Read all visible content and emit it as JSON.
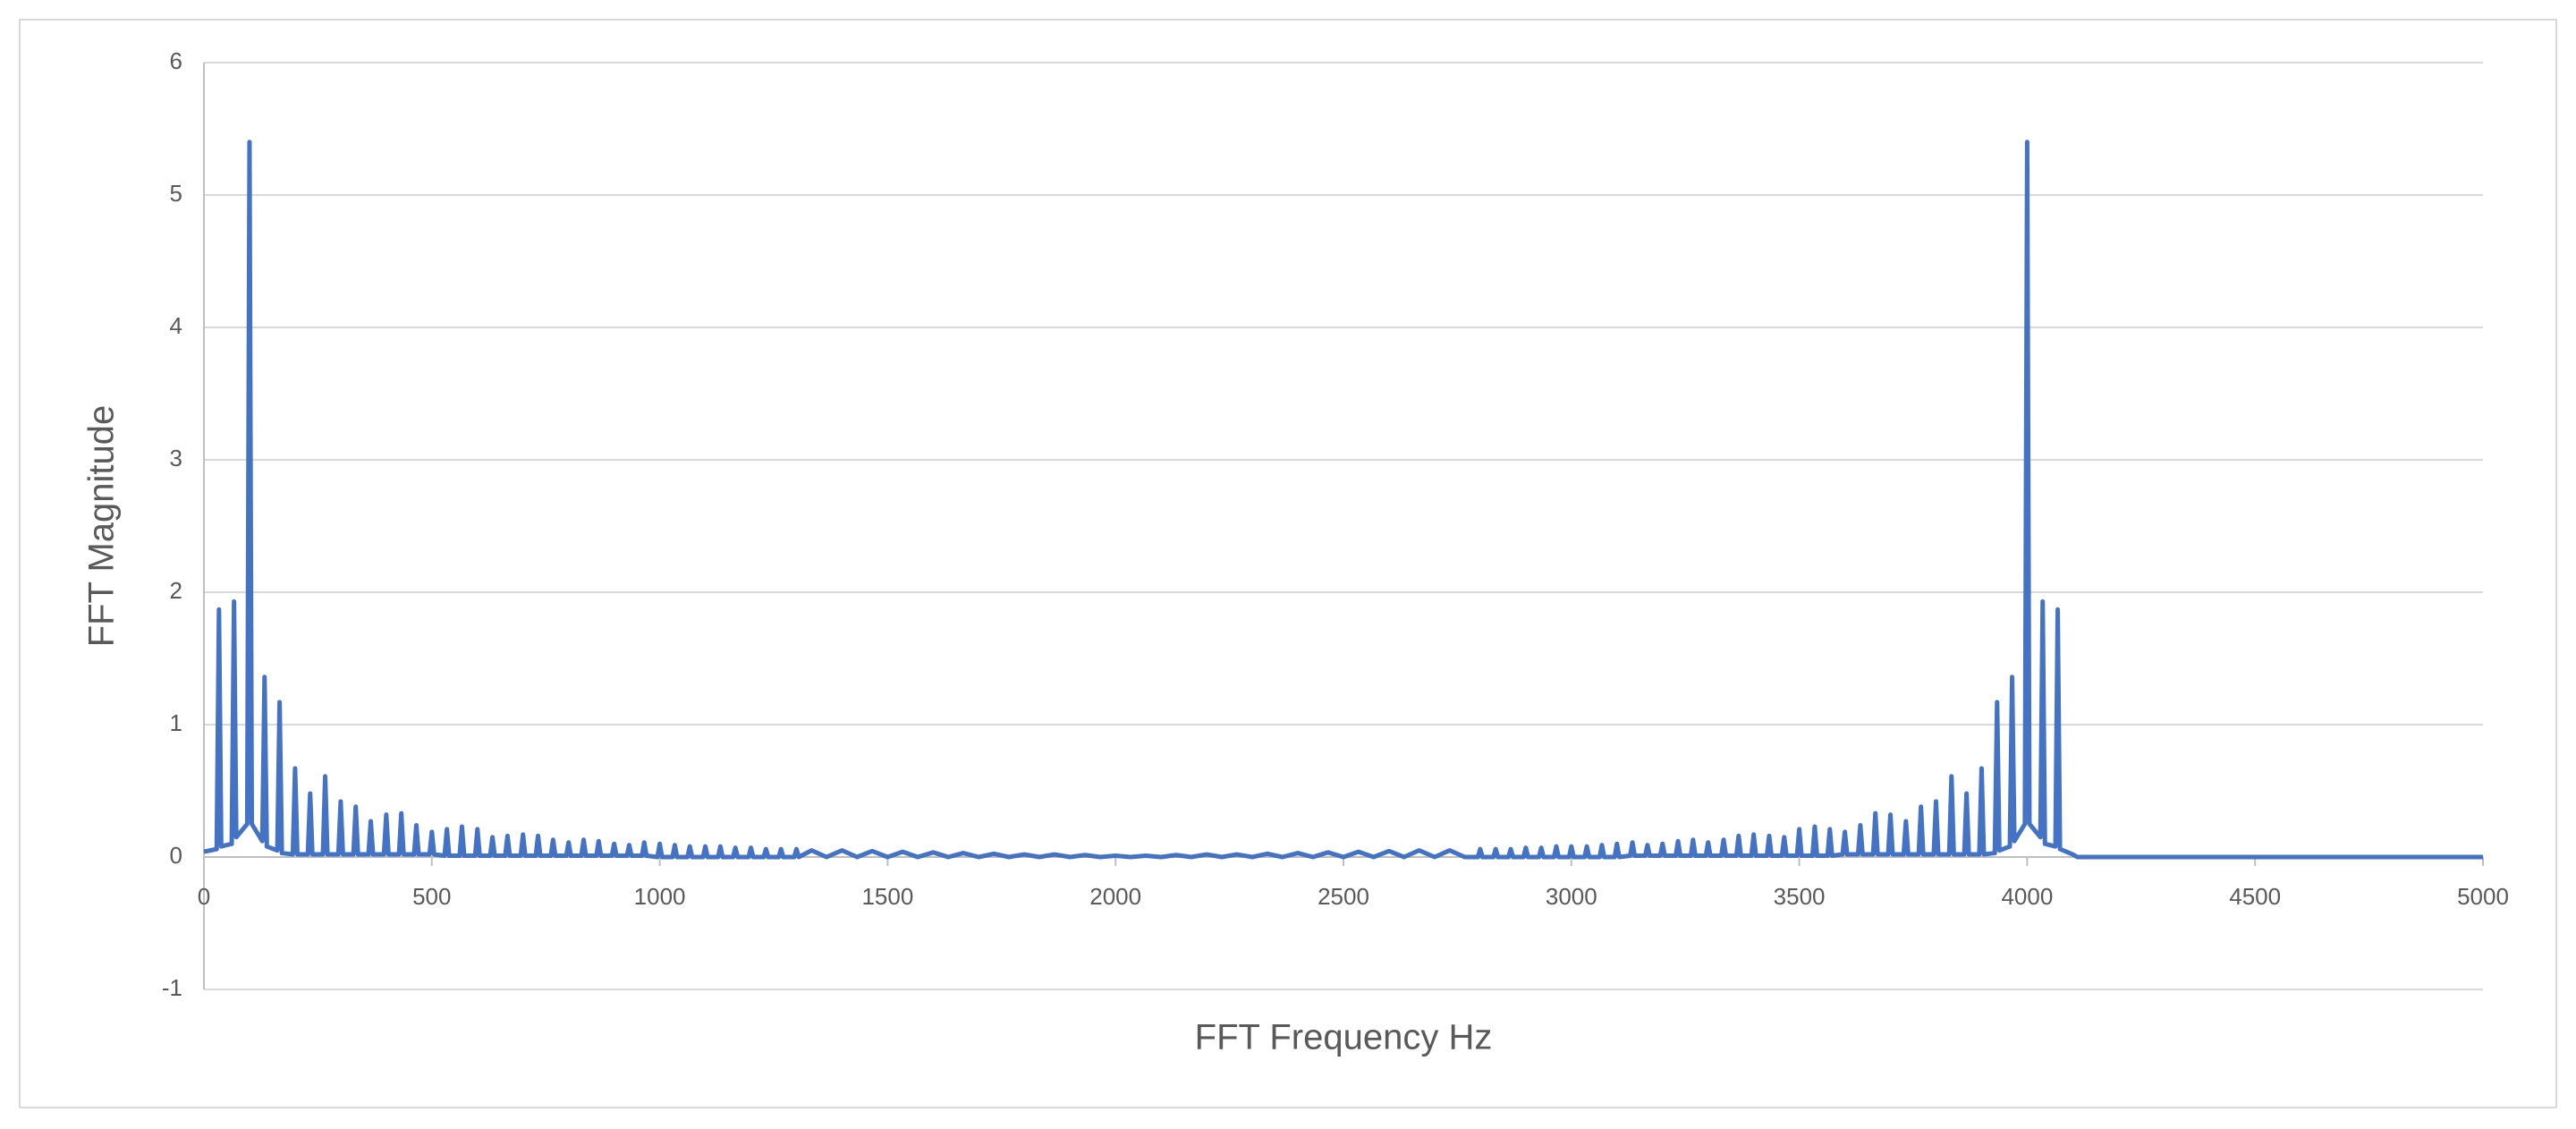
{
  "chart_data": {
    "type": "line",
    "x_label": "FFT Frequency Hz",
    "y_label": "FFT Magnitude",
    "color": "#4472c4",
    "grid": true,
    "xlim": [
      0,
      5000
    ],
    "xticks": [
      0,
      500,
      1000,
      1500,
      2000,
      2500,
      3000,
      3500,
      4000,
      4500,
      5000
    ],
    "ylim": [
      -1,
      6
    ],
    "yticks": [
      -1,
      0,
      1,
      2,
      3,
      4,
      5,
      6
    ],
    "x": [
      0,
      28,
      33,
      38,
      61,
      66,
      71,
      95,
      100,
      105,
      128,
      133,
      138,
      161,
      166,
      171,
      195,
      200,
      205,
      228,
      233,
      238,
      261,
      266,
      271,
      295,
      300,
      305,
      328,
      333,
      338,
      361,
      366,
      371,
      395,
      400,
      405,
      428,
      433,
      438,
      461,
      466,
      471,
      495,
      500,
      505,
      528,
      533,
      538,
      561,
      566,
      571,
      595,
      600,
      605,
      628,
      633,
      638,
      661,
      666,
      671,
      695,
      700,
      705,
      728,
      733,
      738,
      761,
      766,
      771,
      795,
      800,
      805,
      828,
      833,
      838,
      861,
      866,
      871,
      895,
      900,
      905,
      928,
      933,
      938,
      961,
      966,
      971,
      995,
      1000,
      1005,
      1028,
      1033,
      1038,
      1061,
      1066,
      1071,
      1095,
      1100,
      1105,
      1128,
      1133,
      1138,
      1161,
      1166,
      1171,
      1195,
      1200,
      1205,
      1228,
      1233,
      1238,
      1261,
      1266,
      1271,
      1295,
      1300,
      1305,
      1333,
      1366,
      1400,
      1433,
      1466,
      1500,
      1533,
      1566,
      1600,
      1633,
      1666,
      1700,
      1733,
      1766,
      1800,
      1833,
      1866,
      1900,
      1933,
      1966,
      2000,
      2033,
      2066,
      2100,
      2133,
      2166,
      2200,
      2233,
      2266,
      2300,
      2333,
      2366,
      2400,
      2433,
      2466,
      2500,
      2533,
      2566,
      2600,
      2633,
      2666,
      2700,
      2733,
      2766,
      2795,
      2800,
      2805,
      2829,
      2834,
      2839,
      2862,
      2867,
      2872,
      2895,
      2900,
      2905,
      2929,
      2934,
      2939,
      2962,
      2967,
      2972,
      2995,
      3000,
      3005,
      3029,
      3034,
      3039,
      3062,
      3067,
      3072,
      3095,
      3100,
      3105,
      3129,
      3134,
      3139,
      3162,
      3167,
      3172,
      3195,
      3200,
      3205,
      3229,
      3234,
      3239,
      3262,
      3267,
      3272,
      3295,
      3300,
      3305,
      3329,
      3334,
      3339,
      3362,
      3367,
      3372,
      3395,
      3400,
      3405,
      3429,
      3434,
      3439,
      3462,
      3467,
      3472,
      3495,
      3500,
      3505,
      3529,
      3534,
      3539,
      3562,
      3567,
      3572,
      3595,
      3600,
      3605,
      3629,
      3634,
      3639,
      3662,
      3667,
      3672,
      3695,
      3700,
      3705,
      3729,
      3734,
      3739,
      3762,
      3767,
      3772,
      3795,
      3800,
      3805,
      3829,
      3834,
      3839,
      3862,
      3867,
      3872,
      3895,
      3900,
      3905,
      3929,
      3934,
      3939,
      3962,
      3967,
      3972,
      3995,
      4000,
      4005,
      4029,
      4034,
      4039,
      4062,
      4067,
      4072,
      4100,
      4110,
      5000
    ],
    "values": [
      0.04,
      0.06,
      1.87,
      0.08,
      0.1,
      1.93,
      0.15,
      0.25,
      5.4,
      0.25,
      0.12,
      1.36,
      0.08,
      0.05,
      1.17,
      0.03,
      0.02,
      0.67,
      0.02,
      0.02,
      0.48,
      0.02,
      0.02,
      0.61,
      0.02,
      0.02,
      0.42,
      0.02,
      0.02,
      0.38,
      0.02,
      0.02,
      0.27,
      0.02,
      0.02,
      0.32,
      0.02,
      0.02,
      0.33,
      0.02,
      0.02,
      0.24,
      0.02,
      0.02,
      0.19,
      0.02,
      0.01,
      0.21,
      0.01,
      0.01,
      0.23,
      0.01,
      0.01,
      0.21,
      0.01,
      0.01,
      0.15,
      0.01,
      0.01,
      0.16,
      0.01,
      0.01,
      0.17,
      0.01,
      0.01,
      0.16,
      0.01,
      0.01,
      0.13,
      0.01,
      0.01,
      0.11,
      0.01,
      0.01,
      0.13,
      0.01,
      0.01,
      0.12,
      0.01,
      0.01,
      0.1,
      0.01,
      0.01,
      0.09,
      0.01,
      0.01,
      0.11,
      0.01,
      0,
      0.1,
      0,
      0,
      0.09,
      0,
      0,
      0.08,
      0,
      0,
      0.08,
      0,
      0,
      0.08,
      0,
      0,
      0.07,
      0,
      0,
      0.07,
      0,
      0,
      0.06,
      0,
      0,
      0.06,
      0,
      0,
      0.06,
      0,
      0.05,
      0,
      0.05,
      0,
      0.045,
      0,
      0.04,
      0,
      0.035,
      0,
      0.03,
      0,
      0.025,
      0,
      0.02,
      0,
      0.02,
      0,
      0.015,
      0,
      0.01,
      0,
      0.01,
      0,
      0.015,
      0,
      0.02,
      0,
      0.02,
      0,
      0.025,
      0,
      0.03,
      0,
      0.035,
      0,
      0.04,
      0,
      0.045,
      0,
      0.05,
      0,
      0.05,
      0,
      0,
      0.06,
      0,
      0,
      0.06,
      0,
      0,
      0.06,
      0,
      0,
      0.07,
      0,
      0,
      0.07,
      0,
      0,
      0.08,
      0,
      0,
      0.08,
      0,
      0,
      0.08,
      0,
      0,
      0.09,
      0,
      0,
      0.1,
      0,
      0.01,
      0.11,
      0.01,
      0.01,
      0.09,
      0.01,
      0.01,
      0.1,
      0.01,
      0.01,
      0.12,
      0.01,
      0.01,
      0.13,
      0.01,
      0.01,
      0.11,
      0.01,
      0.01,
      0.13,
      0.01,
      0.01,
      0.16,
      0.01,
      0.01,
      0.17,
      0.01,
      0.01,
      0.16,
      0.01,
      0.01,
      0.15,
      0.01,
      0.01,
      0.21,
      0.01,
      0.01,
      0.23,
      0.01,
      0.01,
      0.21,
      0.01,
      0.02,
      0.19,
      0.02,
      0.02,
      0.24,
      0.02,
      0.02,
      0.33,
      0.02,
      0.02,
      0.32,
      0.02,
      0.02,
      0.27,
      0.02,
      0.02,
      0.38,
      0.02,
      0.02,
      0.42,
      0.02,
      0.02,
      0.61,
      0.02,
      0.02,
      0.48,
      0.02,
      0.02,
      0.67,
      0.02,
      0.03,
      1.17,
      0.05,
      0.08,
      1.36,
      0.12,
      0.25,
      5.4,
      0.25,
      0.15,
      1.93,
      0.1,
      0.08,
      1.87,
      0.06,
      0.02,
      0,
      0
    ]
  }
}
